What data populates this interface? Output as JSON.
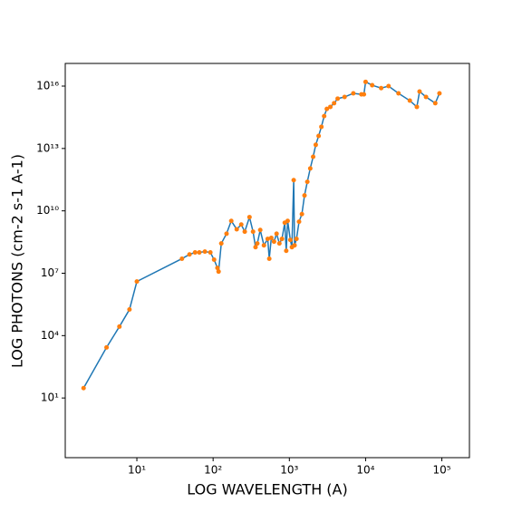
{
  "chart_data": {
    "type": "line",
    "x_label": "LOG WAVELENGTH (A)",
    "y_label": "LOG PHOTONS (cm-2 s-1 A-1)",
    "xscale": "log",
    "yscale": "log",
    "color": "#1f77b4",
    "marker_color": "#ff7f0e",
    "xlim": [
      1.15,
      230000
    ],
    "ylim": [
      0.0135,
      1.23e+17
    ],
    "xticks": [
      {
        "value": 10,
        "label": "10¹"
      },
      {
        "value": 100,
        "label": "10²"
      },
      {
        "value": 1000,
        "label": "10³"
      },
      {
        "value": 10000,
        "label": "10⁴"
      },
      {
        "value": 100000,
        "label": "10⁵"
      }
    ],
    "yticks": [
      {
        "value": 10,
        "label": "10¹"
      },
      {
        "value": 10000,
        "label": "10⁴"
      },
      {
        "value": 10000000,
        "label": "10⁷"
      },
      {
        "value": 10000000000,
        "label": "10¹⁰"
      },
      {
        "value": 10000000000000,
        "label": "10¹³"
      },
      {
        "value": 10000000000000000,
        "label": "10¹⁶"
      }
    ],
    "x": [
      2.0,
      4.0,
      5.9,
      8.0,
      10,
      39,
      49,
      58,
      66,
      78,
      92,
      103,
      114,
      118,
      128,
      150,
      173,
      204,
      234,
      260,
      300,
      334,
      360,
      380,
      415,
      464,
      520,
      545,
      580,
      630,
      680,
      740,
      800,
      870,
      910,
      950,
      1030,
      1080,
      1140,
      1170,
      1240,
      1340,
      1460,
      1580,
      1720,
      1880,
      2050,
      2220,
      2420,
      2630,
      2860,
      3100,
      3450,
      3860,
      4300,
      5300,
      6900,
      8800,
      9500,
      10000,
      12200,
      16000,
      20000,
      27000,
      38000,
      47000,
      51000,
      62000,
      82000,
      93000
    ],
    "values": [
      30,
      2700,
      27000,
      180000,
      4000000,
      50000000,
      80000000,
      100000000,
      100000000,
      110000000,
      100000000,
      45000000,
      18000000,
      12000000,
      270000000,
      800000000,
      3300000000,
      1300000000,
      2200000000,
      1000000000,
      5000000000,
      1000000000,
      180000000,
      270000000,
      1200000000,
      220000000,
      450000000,
      50000000,
      500000000,
      330000000,
      800000000,
      270000000,
      450000000,
      2700000000,
      120000000,
      3300000000,
      400000000,
      180000000,
      300000000000,
      220000000,
      450000000,
      3000000000,
      7000000000,
      55000000000,
      250000000000,
      1100000000000,
      4000000000000,
      15000000000000,
      40000000000000,
      110000000000000,
      360000000000000,
      800000000000000,
      1000000000000000,
      1500000000000000,
      2500000000000000,
      3000000000000000,
      4500000000000000,
      4000000000000000,
      4000000000000000,
      16000000000000000,
      11000000000000000,
      8000000000000000,
      10000000000000000,
      4500000000000000,
      2000000000000000,
      1000000000000000,
      5500000000000000,
      3000000000000000,
      1500000000000000,
      4500000000000000
    ]
  }
}
